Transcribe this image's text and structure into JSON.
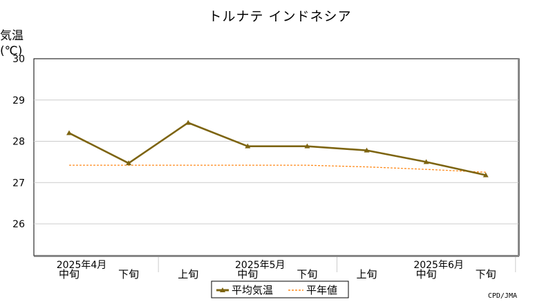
{
  "chart_data": {
    "type": "line",
    "title": "トルナテ インドネシア",
    "ylabel_line1": "気温",
    "ylabel_line2": "(℃)",
    "ylim": [
      26,
      30
    ],
    "yticks": [
      26,
      27,
      28,
      29,
      30
    ],
    "x_labels": [
      "中旬",
      "下旬",
      "上旬",
      "中旬",
      "下旬",
      "上旬",
      "中旬",
      "下旬"
    ],
    "month_labels": [
      "2025年4月",
      "2025年5月",
      "2025年6月"
    ],
    "series": [
      {
        "name": "平均気温",
        "values": [
          28.2,
          27.47,
          28.45,
          27.88,
          27.88,
          27.78,
          27.5,
          27.18
        ],
        "color": "#7d6410"
      },
      {
        "name": "平年値",
        "values": [
          27.42,
          27.42,
          27.42,
          27.42,
          27.42,
          27.38,
          27.32,
          27.25
        ],
        "color": "#ff8a1a"
      }
    ],
    "grid": true,
    "legend_position": "bottom-center",
    "source": "CPD/JMA"
  }
}
